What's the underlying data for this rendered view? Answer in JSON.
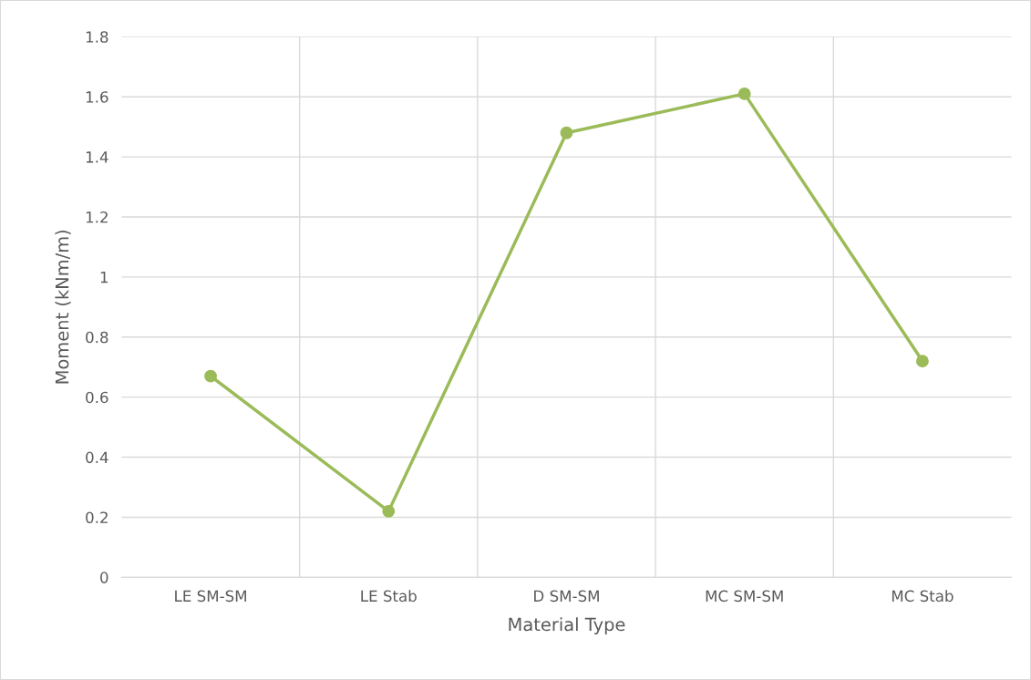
{
  "chart_data": {
    "type": "line",
    "xlabel": "Material Type",
    "ylabel": "Moment (kNm/m)",
    "categories": [
      "LE SM-SM",
      "LE Stab",
      "D SM-SM",
      "MC SM-SM",
      "MC Stab"
    ],
    "series": [
      {
        "color": "#9bbb59",
        "values": [
          0.67,
          0.22,
          1.48,
          1.61,
          0.72
        ]
      }
    ],
    "ylim": [
      0,
      1.8
    ],
    "yticks": [
      0,
      0.2,
      0.4,
      0.6,
      0.8,
      1,
      1.2,
      1.4,
      1.6,
      1.8
    ],
    "grid": true,
    "marker": "circle",
    "line_style": "solid"
  }
}
